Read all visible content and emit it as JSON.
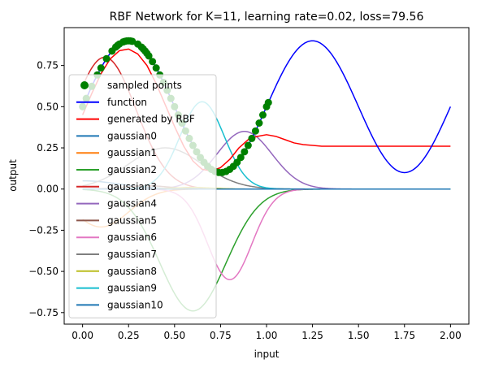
{
  "chart_data": {
    "type": "line",
    "title": "RBF Network for K=11, learning rate=0.02, loss=79.56",
    "xlabel": "input",
    "ylabel": "output",
    "xlim": [
      -0.1,
      2.1
    ],
    "ylim": [
      -0.82,
      0.98
    ],
    "xticks": [
      0.0,
      0.25,
      0.5,
      0.75,
      1.0,
      1.25,
      1.5,
      1.75,
      2.0
    ],
    "xtick_labels": [
      "0.00",
      "0.25",
      "0.50",
      "0.75",
      "1.00",
      "1.25",
      "1.50",
      "1.75",
      "2.00"
    ],
    "yticks": [
      -0.75,
      -0.5,
      -0.25,
      0.0,
      0.25,
      0.5,
      0.75
    ],
    "ytick_labels": [
      "−0.75",
      "−0.50",
      "−0.25",
      "0.00",
      "0.25",
      "0.50",
      "0.75"
    ],
    "grid": false,
    "legend_position": "lower-left",
    "legend_alpha": 0.8,
    "sampled_points": {
      "name": "sampled points",
      "color": "#008000",
      "x": [
        0.0,
        0.02,
        0.05,
        0.08,
        0.1,
        0.13,
        0.16,
        0.18,
        0.19,
        0.2,
        0.22,
        0.23,
        0.24,
        0.25,
        0.26,
        0.27,
        0.3,
        0.32,
        0.33,
        0.34,
        0.35,
        0.36,
        0.38,
        0.4,
        0.42,
        0.44,
        0.46,
        0.48,
        0.5,
        0.52,
        0.54,
        0.56,
        0.58,
        0.6,
        0.62,
        0.64,
        0.66,
        0.68,
        0.7,
        0.72,
        0.74,
        0.76,
        0.78,
        0.8,
        0.82,
        0.84,
        0.86,
        0.88,
        0.9,
        0.92,
        0.94,
        0.96,
        0.98,
        1.0,
        1.01
      ]
    },
    "series": [
      {
        "name": "function",
        "color": "#0000ff",
        "formula": "sin(2*pi*x)*0.4+0.5",
        "x_range": [
          0.0,
          2.0
        ]
      },
      {
        "name": "generated by RBF",
        "color": "#ff0000",
        "x": [
          0.0,
          0.05,
          0.1,
          0.15,
          0.2,
          0.25,
          0.3,
          0.35,
          0.4,
          0.45,
          0.5,
          0.55,
          0.6,
          0.65,
          0.7,
          0.75,
          0.8,
          0.85,
          0.9,
          0.95,
          1.0,
          1.05,
          1.1,
          1.15,
          1.2,
          1.3,
          1.4,
          1.6,
          1.8,
          2.0
        ],
        "y": [
          0.45,
          0.58,
          0.7,
          0.79,
          0.84,
          0.85,
          0.82,
          0.75,
          0.64,
          0.51,
          0.38,
          0.26,
          0.17,
          0.12,
          0.11,
          0.13,
          0.18,
          0.25,
          0.3,
          0.32,
          0.33,
          0.32,
          0.3,
          0.28,
          0.27,
          0.26,
          0.26,
          0.26,
          0.26,
          0.26
        ]
      },
      {
        "name": "gaussian0",
        "color": "#1f77b4",
        "amplitude": 0.05,
        "center": 0.0,
        "sigma": 0.2
      },
      {
        "name": "gaussian1",
        "color": "#ff7f0e",
        "amplitude": -0.23,
        "center": 0.1,
        "sigma": 0.15
      },
      {
        "name": "gaussian2",
        "color": "#2ca02c",
        "amplitude": -0.74,
        "center": 0.6,
        "sigma": 0.18
      },
      {
        "name": "gaussian3",
        "color": "#d62728",
        "amplitude": 0.8,
        "center": 0.12,
        "sigma": 0.17
      },
      {
        "name": "gaussian4",
        "color": "#9467bd",
        "amplitude": 0.35,
        "center": 0.88,
        "sigma": 0.15
      },
      {
        "name": "gaussian5",
        "color": "#8c564b",
        "amplitude": 0.02,
        "center": 0.35,
        "sigma": 0.12
      },
      {
        "name": "gaussian6",
        "color": "#e377c2",
        "amplitude": -0.55,
        "center": 0.8,
        "sigma": 0.12
      },
      {
        "name": "gaussian7",
        "color": "#7f7f7f",
        "amplitude": 0.25,
        "center": 0.45,
        "sigma": 0.2
      },
      {
        "name": "gaussian8",
        "color": "#bcbd22",
        "amplitude": 0.01,
        "center": 0.6,
        "sigma": 0.1
      },
      {
        "name": "gaussian9",
        "color": "#17becf",
        "amplitude": 0.53,
        "center": 0.65,
        "sigma": 0.12
      },
      {
        "name": "gaussian10",
        "color": "#1f77b4",
        "amplitude": 0.0,
        "center": 0.6,
        "sigma": 0.1
      }
    ]
  }
}
